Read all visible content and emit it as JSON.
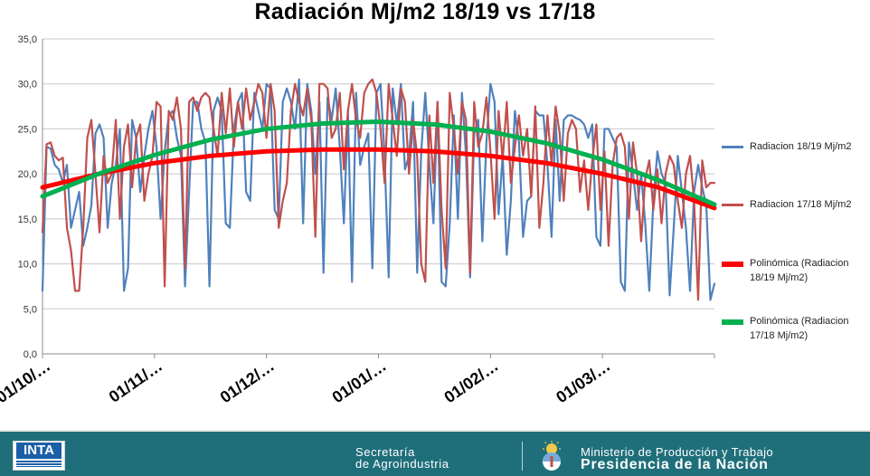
{
  "chart_data": {
    "type": "line",
    "title": "Radiación Mj/m2 18/19 vs 17/18",
    "xlabel": "",
    "ylabel": "",
    "ylim": [
      0,
      35
    ],
    "y_ticks": [
      "0,0",
      "5,0",
      "10,0",
      "15,0",
      "20,0",
      "25,0",
      "30,0",
      "35,0"
    ],
    "x_ticks": [
      "01/10/…",
      "01/11/…",
      "01/12/…",
      "01/01/…",
      "01/02/…",
      "01/03/…"
    ],
    "grid": "horizontal",
    "legend_position": "right",
    "series": [
      {
        "name": "Radiacion 18/19 Mj/m2",
        "color": "#4f81bd",
        "style": "thin",
        "values": [
          7.0,
          23.0,
          22.8,
          21.0,
          20.5,
          19.0,
          21.0,
          14.0,
          16.0,
          18.0,
          12.0,
          14.0,
          16.5,
          24.5,
          25.5,
          24.0,
          14.0,
          19.0,
          21.0,
          25.0,
          7.0,
          9.5,
          26.0,
          24.0,
          18.0,
          22.0,
          25.0,
          27.0,
          23.0,
          15.0,
          22.5,
          26.5,
          27.0,
          24.0,
          22.0,
          7.5,
          18.0,
          28.0,
          28.0,
          25.0,
          23.5,
          7.5,
          27.0,
          28.5,
          27.0,
          14.5,
          14.0,
          25.0,
          28.0,
          29.0,
          18.0,
          17.0,
          29.0,
          27.0,
          25.0,
          30.0,
          29.5,
          16.0,
          15.0,
          28.0,
          29.5,
          28.0,
          25.0,
          30.5,
          14.5,
          30.0,
          27.0,
          20.0,
          28.0,
          9.0,
          28.5,
          26.0,
          29.5,
          23.0,
          14.5,
          27.0,
          8.0,
          29.0,
          21.0,
          23.0,
          24.5,
          9.5,
          29.0,
          30.0,
          22.0,
          8.5,
          29.5,
          25.5,
          30.0,
          20.5,
          22.0,
          28.0,
          9.0,
          22.5,
          29.0,
          21.0,
          14.5,
          28.0,
          8.0,
          7.5,
          14.5,
          26.5,
          15.0,
          29.0,
          22.0,
          8.5,
          24.5,
          26.0,
          12.5,
          23.5,
          30.0,
          28.0,
          15.5,
          22.0,
          11.0,
          17.0,
          27.0,
          23.5,
          13.0,
          17.0,
          17.5,
          27.0,
          26.5,
          26.5,
          21.0,
          13.0,
          26.0,
          17.0,
          26.0,
          26.5,
          26.5,
          26.2,
          26.0,
          25.5,
          24.0,
          25.5,
          13.0,
          12.0,
          25.0,
          25.0,
          24.0,
          23.0,
          8.0,
          7.0,
          23.5,
          20.0,
          16.0,
          20.0,
          14.5,
          7.0,
          17.0,
          22.5,
          20.0,
          19.0,
          6.5,
          14.0,
          22.0,
          18.0,
          14.0,
          7.0,
          18.0,
          21.0,
          18.5,
          16.5,
          6.0,
          7.8
        ]
      },
      {
        "name": "Radiacion 17/18 Mj/m2",
        "color": "#c0504d",
        "style": "thin",
        "values": [
          13.5,
          23.3,
          23.5,
          22.0,
          21.5,
          21.8,
          14.0,
          11.5,
          7.0,
          7.0,
          14.0,
          24.0,
          26.0,
          20.0,
          13.5,
          22.0,
          19.0,
          20.0,
          26.0,
          15.0,
          23.0,
          25.5,
          18.5,
          24.0,
          25.5,
          17.0,
          20.0,
          22.0,
          28.0,
          27.5,
          7.5,
          27.0,
          26.0,
          28.5,
          25.0,
          9.5,
          28.0,
          28.5,
          27.0,
          28.5,
          29.0,
          28.5,
          25.0,
          22.0,
          29.0,
          24.5,
          29.5,
          23.0,
          28.0,
          25.0,
          29.5,
          26.0,
          28.0,
          30.0,
          29.0,
          24.0,
          30.0,
          27.0,
          14.0,
          17.0,
          19.0,
          27.0,
          30.0,
          28.0,
          26.5,
          29.5,
          26.0,
          13.0,
          30.0,
          30.0,
          29.5,
          24.0,
          25.0,
          29.0,
          20.5,
          27.0,
          30.0,
          26.0,
          24.0,
          29.0,
          30.0,
          30.5,
          29.0,
          25.0,
          19.0,
          30.0,
          26.0,
          22.0,
          29.5,
          28.0,
          20.0,
          26.0,
          22.0,
          10.0,
          8.0,
          26.5,
          19.0,
          28.0,
          16.0,
          9.5,
          29.0,
          25.0,
          20.0,
          28.0,
          26.0,
          9.0,
          28.0,
          23.0,
          24.5,
          28.5,
          22.5,
          15.0,
          27.0,
          21.5,
          28.0,
          19.0,
          23.0,
          26.5,
          22.0,
          25.0,
          17.5,
          27.5,
          14.0,
          19.0,
          26.5,
          21.0,
          27.5,
          24.5,
          17.0,
          24.5,
          26.0,
          25.0,
          18.0,
          21.5,
          16.0,
          21.5,
          25.5,
          16.0,
          22.5,
          12.0,
          21.0,
          24.0,
          24.5,
          23.0,
          15.0,
          23.5,
          20.0,
          12.5,
          19.5,
          21.5,
          16.0,
          20.5,
          14.5,
          20.0,
          22.0,
          21.0,
          17.0,
          14.0,
          20.0,
          22.0,
          17.0,
          6.0,
          21.5,
          18.5,
          19.0,
          19.0
        ]
      },
      {
        "name": "Polinómica (Radiacion 18/19 Mj/m2)",
        "color": "#ff0000",
        "style": "trend",
        "values": [
          18.5,
          20.0,
          21.2,
          22.0,
          22.5,
          22.7,
          22.7,
          22.5,
          22.0,
          21.2,
          20.0,
          18.5,
          16.2
        ]
      },
      {
        "name": "Polinómica (Radiacion 17/18 Mj/m2)",
        "color": "#00b050",
        "style": "trend",
        "values": [
          17.5,
          20.0,
          22.1,
          23.8,
          25.0,
          25.6,
          25.8,
          25.5,
          24.7,
          23.4,
          21.6,
          19.3,
          16.6
        ]
      }
    ]
  },
  "footer": {
    "logo": "INTA",
    "secretaria_line1": "Secretaría",
    "secretaria_line2": "de Agroindustria",
    "ministerio_line1": "Ministerio de Producción y Trabajo",
    "ministerio_line2": "Presidencia de la Nación",
    "seal_icon": "argentina-seal-icon"
  }
}
